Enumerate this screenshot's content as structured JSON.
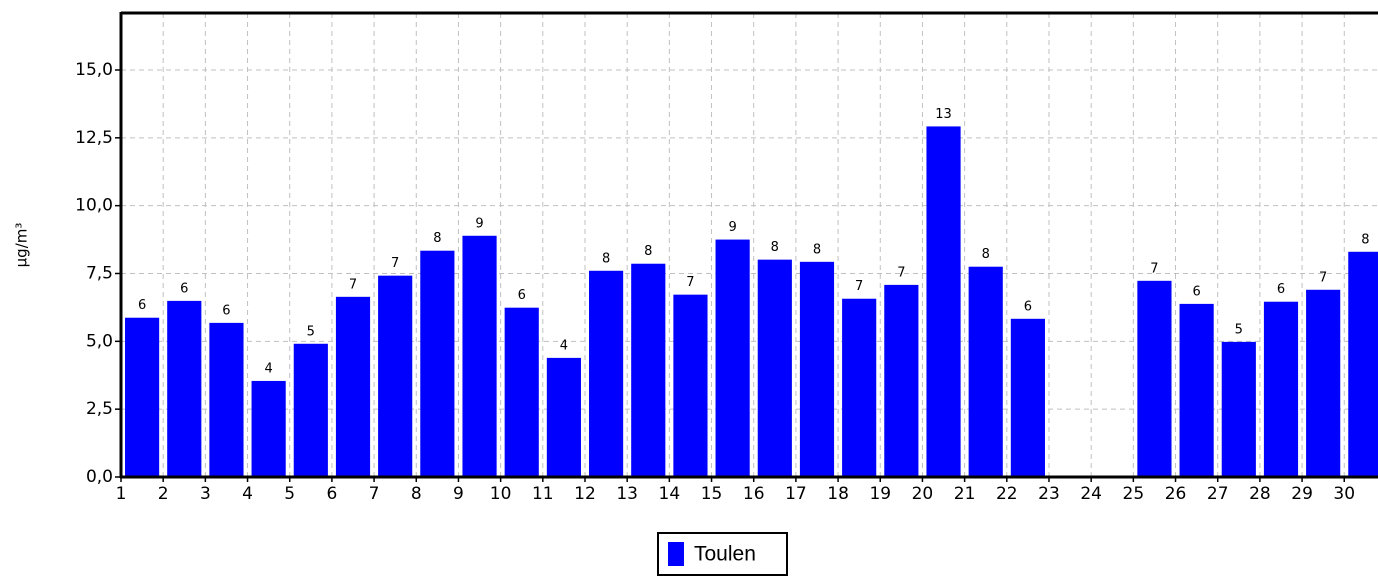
{
  "chart_data": {
    "type": "bar",
    "y_label": "µg/m³",
    "x": [
      1,
      2,
      3,
      4,
      5,
      6,
      7,
      8,
      9,
      10,
      11,
      12,
      13,
      14,
      15,
      16,
      17,
      18,
      19,
      20,
      21,
      22,
      23,
      24,
      25,
      26,
      27,
      28,
      29,
      30
    ],
    "series": [
      {
        "name": "Toulen",
        "color": "#0000ff",
        "values": [
          5.87,
          6.49,
          5.68,
          3.54,
          4.91,
          6.64,
          7.42,
          8.34,
          8.89,
          6.24,
          4.39,
          7.6,
          7.86,
          6.72,
          8.75,
          8.01,
          7.93,
          6.57,
          7.08,
          12.92,
          7.75,
          5.83,
          null,
          null,
          7.23,
          6.38,
          4.98,
          6.46,
          6.9,
          8.3
        ],
        "value_labels": [
          "6",
          "6",
          "6",
          "4",
          "5",
          "7",
          "7",
          "8",
          "9",
          "6",
          "4",
          "8",
          "8",
          "7",
          "9",
          "8",
          "8",
          "7",
          "7",
          "13",
          "8",
          "6",
          null,
          null,
          "7",
          "6",
          "5",
          "6",
          "7",
          "8"
        ]
      }
    ],
    "xlim": [
      1,
      30.8
    ],
    "xticks": [
      1,
      2,
      3,
      4,
      5,
      6,
      7,
      8,
      9,
      10,
      11,
      12,
      13,
      14,
      15,
      16,
      17,
      18,
      19,
      20,
      21,
      22,
      23,
      24,
      25,
      26,
      27,
      28,
      29,
      30
    ],
    "ylim": [
      0,
      17.1
    ],
    "yticks": [
      {
        "value": 0,
        "label": "0,0"
      },
      {
        "value": 2.5,
        "label": "2,5"
      },
      {
        "value": 5,
        "label": "5,0"
      },
      {
        "value": 7.5,
        "label": "7,5"
      },
      {
        "value": 10,
        "label": "10,0"
      },
      {
        "value": 12.5,
        "label": "12,5"
      },
      {
        "value": 15,
        "label": "15,0"
      }
    ],
    "grid": true,
    "legend": "bottom"
  }
}
